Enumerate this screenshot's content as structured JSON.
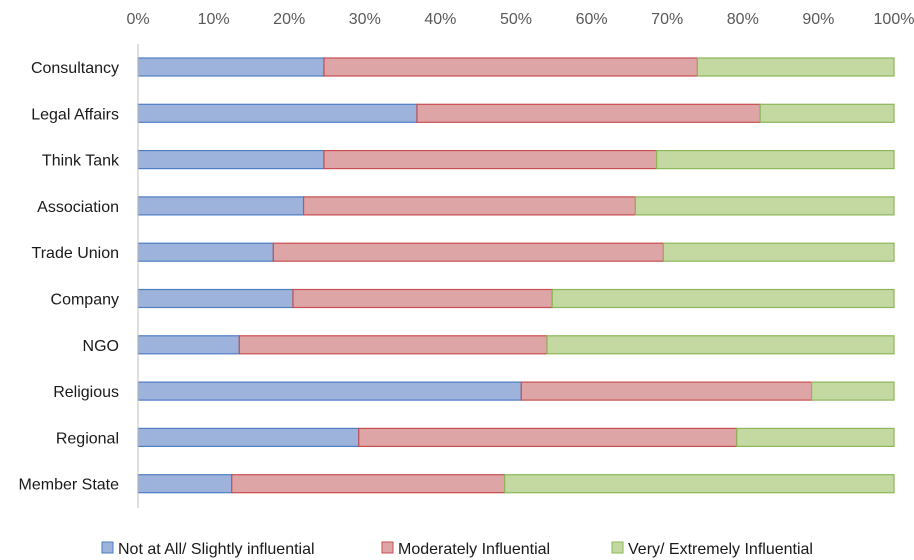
{
  "chart_data": {
    "type": "bar",
    "orientation": "horizontal",
    "stacked": "percent",
    "categories": [
      "Consultancy",
      "Legal Affairs",
      "Think Tank",
      "Association",
      "Trade Union",
      "Company",
      "NGO",
      "Religious",
      "Regional",
      "Member State"
    ],
    "series": [
      {
        "name": "Not at All/ Slightly influential",
        "values": [
          24.6,
          36.9,
          24.6,
          21.9,
          17.9,
          20.5,
          13.4,
          50.7,
          29.2,
          12.4
        ]
      },
      {
        "name": "Moderately Influential",
        "values": [
          49.4,
          45.4,
          44.0,
          43.9,
          51.6,
          34.3,
          40.7,
          38.4,
          50.0,
          36.1
        ]
      },
      {
        "name": "Very/ Extremely Influential",
        "values": [
          26.0,
          17.7,
          31.4,
          34.2,
          30.5,
          45.2,
          45.9,
          10.9,
          20.8,
          51.5
        ]
      }
    ],
    "xlim": [
      0,
      100
    ],
    "xticks": [
      "0%",
      "10%",
      "20%",
      "30%",
      "40%",
      "50%",
      "60%",
      "70%",
      "80%",
      "90%",
      "100%"
    ],
    "xaxis_position": "top",
    "legend_position": "bottom",
    "grid": false,
    "title": "",
    "xlabel": "",
    "ylabel": "",
    "colors": {
      "fills": [
        "#9db3db",
        "#dea5a6",
        "#c4d9a2"
      ],
      "strokes": [
        "#4f7ec4",
        "#c84e52",
        "#8db65a"
      ]
    }
  }
}
